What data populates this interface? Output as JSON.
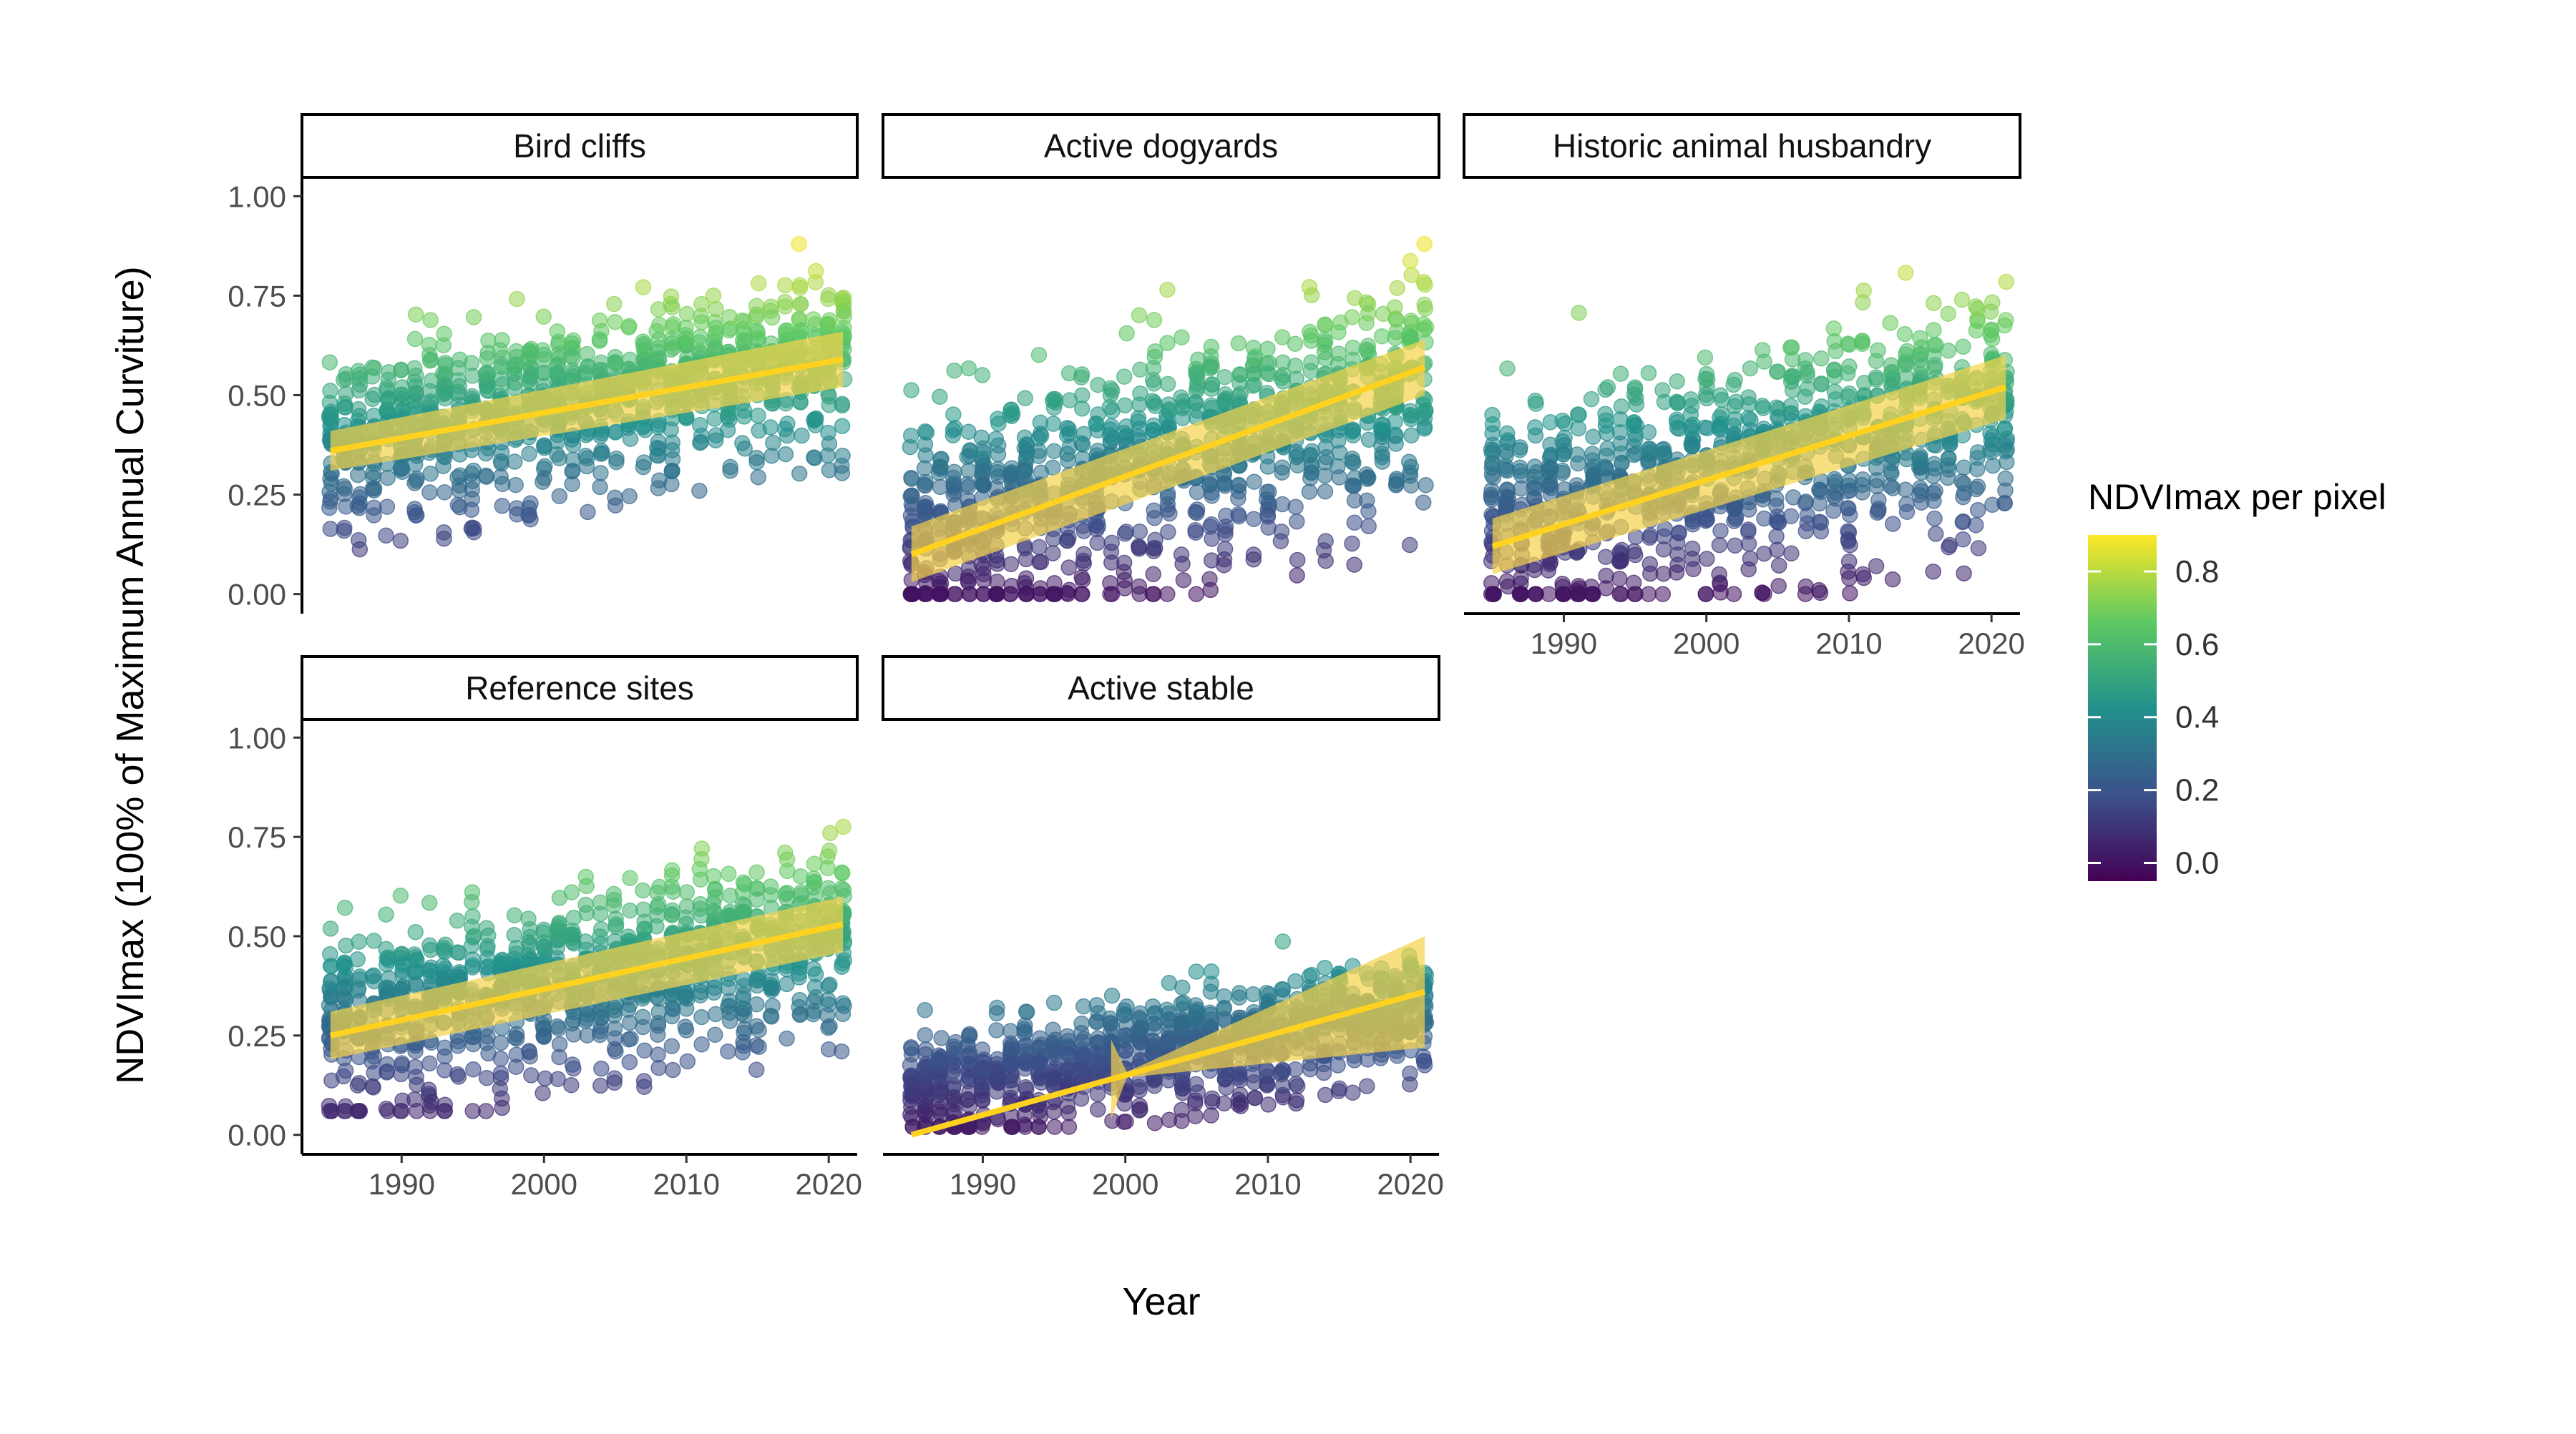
{
  "chart_data": {
    "type": "scatter",
    "title": "",
    "xlabel": "Year",
    "ylabel": "NDVImax (100% of Maximum Annual Curviture)",
    "xlim": [
      1983,
      2022
    ],
    "ylim": [
      0,
      1.0
    ],
    "x_ticks": [
      1990,
      2000,
      2010,
      2020
    ],
    "y_ticks": [
      "0.00",
      "0.25",
      "0.50",
      "0.75",
      "1.00"
    ],
    "y_tick_values": [
      0,
      0.25,
      0.5,
      0.75,
      1.0
    ],
    "grid": false,
    "legend_position": "right",
    "colorbar": {
      "title": "NDVImax per pixel",
      "ticks": [
        "0.0",
        "0.2",
        "0.4",
        "0.6",
        "0.8"
      ],
      "tick_values": [
        0,
        0.2,
        0.4,
        0.6,
        0.8
      ],
      "range": [
        -0.05,
        0.9
      ],
      "colormap": [
        "#440154",
        "#3b528b",
        "#21918c",
        "#5ec962",
        "#fde725"
      ]
    },
    "fit_color": "#ffd21f",
    "ribbon_color": "#f5d34a",
    "panels": [
      {
        "name": "Bird cliffs",
        "x_start": 1985,
        "x_end": 2021,
        "fit": [
          0.36,
          0.59
        ],
        "ribbon_half": [
          0.05,
          0.07
        ],
        "points_base": [
          0.4,
          0.6
        ],
        "spread": 0.12,
        "low_tail": 0.05
      },
      {
        "name": "Active dogyards",
        "x_start": 1985,
        "x_end": 2021,
        "fit": [
          0.1,
          0.57
        ],
        "ribbon_half": [
          0.07,
          0.07
        ],
        "points_base": [
          0.18,
          0.55
        ],
        "spread": 0.17,
        "low_tail": 0.0
      },
      {
        "name": "Historic animal husbandry",
        "x_start": 1985,
        "x_end": 2021,
        "fit": [
          0.12,
          0.52
        ],
        "ribbon_half": [
          0.07,
          0.08
        ],
        "points_base": [
          0.2,
          0.5
        ],
        "spread": 0.17,
        "low_tail": 0.0
      },
      {
        "name": "Reference sites",
        "x_start": 1985,
        "x_end": 2021,
        "fit": [
          0.25,
          0.53
        ],
        "ribbon_half": [
          0.06,
          0.07
        ],
        "points_base": [
          0.3,
          0.52
        ],
        "spread": 0.13,
        "low_tail": 0.06
      },
      {
        "name": "Active stable",
        "x_start": 1985,
        "x_end": 2021,
        "fit": [
          0.0,
          0.36
        ],
        "ribbon_half": [
          0.0,
          0.14
        ],
        "ribbon_start": 1999,
        "points_base": [
          0.12,
          0.33
        ],
        "spread": 0.08,
        "low_tail": 0.02
      }
    ]
  }
}
